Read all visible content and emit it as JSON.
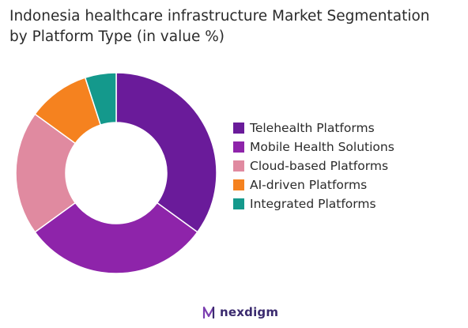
{
  "title_lines": [
    "Indonesia healthcare infrastructure Market Segmentation",
    "by Platform Type (in value %)"
  ],
  "chart_data": {
    "type": "pie",
    "donut": true,
    "title": "Indonesia healthcare infrastructure Market Segmentation by Platform Type (in value %)",
    "legend_position": "right",
    "categories": [
      "Telehealth Platforms",
      "Mobile Health Solutions",
      "Cloud-based Platforms",
      "AI-driven Platforms",
      "Integrated Platforms"
    ],
    "values": [
      35,
      30,
      20,
      10,
      5
    ],
    "colors": [
      "#6a1b9a",
      "#8e24aa",
      "#e08aa0",
      "#f5821f",
      "#14998c"
    ]
  },
  "logo": {
    "text": "nexdigm",
    "color": "#3a2a6e"
  }
}
